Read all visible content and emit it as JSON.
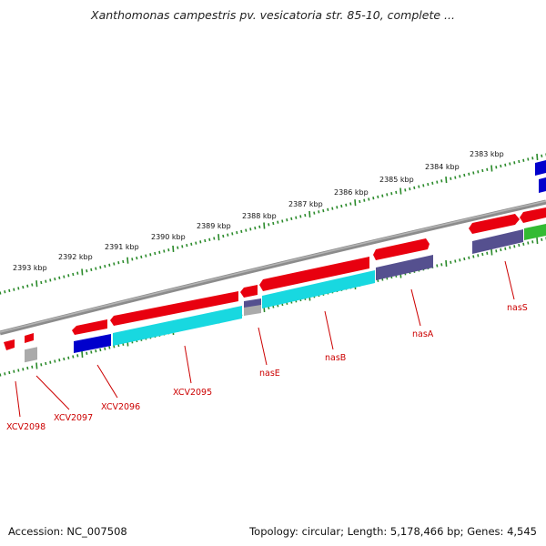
{
  "title": "Xanthomonas campestris pv. vesicatoria str. 85-10, complete ...",
  "accession": "Accession: NC_007508",
  "stats": "Topology: circular; Length: 5,178,466 bp; Genes: 4,545",
  "colors": {
    "backbone": "#8c8c8c",
    "tick": "#2a8a2a",
    "cds": "#e8000f",
    "cds_light": "#ff7070",
    "blue": "#0000cc",
    "cyan": "#18d8e0",
    "purple": "#55508f",
    "gray": "#aaaaaa",
    "green": "#33bb33",
    "label": "#cc0000"
  },
  "axis_labels": [
    "2383 kbp",
    "2384 kbp",
    "2385 kbp",
    "2386 kbp",
    "2387 kbp",
    "2388 kbp",
    "2389 kbp",
    "2390 kbp",
    "2391 kbp",
    "2392 kbp",
    "2393 kbp"
  ],
  "gene_labels": [
    "XCV2098",
    "XCV2097",
    "XCV2096",
    "XCV2095",
    "nasE",
    "nasB",
    "nasA",
    "nasS"
  ]
}
